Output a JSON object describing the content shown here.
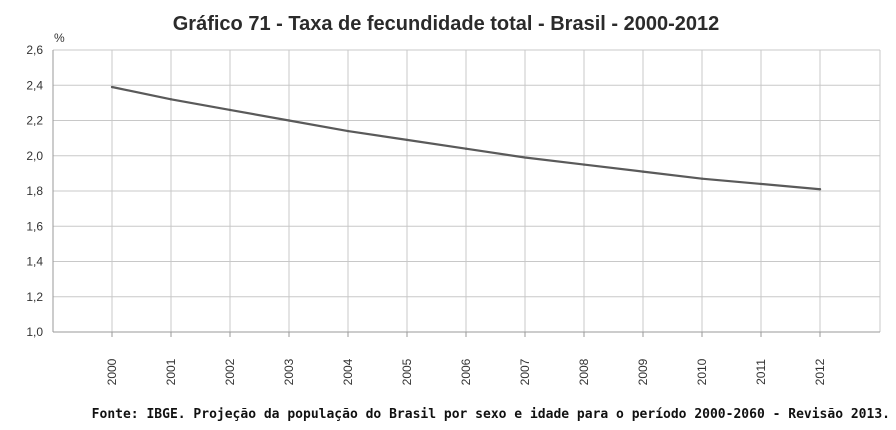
{
  "chart_data": {
    "type": "line",
    "title": "Gráfico 71 - Taxa de fecundidade total - Brasil - 2000-2012",
    "ylabel": "%",
    "xlabel": "",
    "categories": [
      "2000",
      "2001",
      "2002",
      "2003",
      "2004",
      "2005",
      "2006",
      "2007",
      "2008",
      "2009",
      "2010",
      "2011",
      "2012"
    ],
    "yticks": [
      "1,0",
      "1,2",
      "1,4",
      "1,6",
      "1,8",
      "2,0",
      "2,2",
      "2,4",
      "2,6"
    ],
    "ylim": [
      1.0,
      2.6
    ],
    "series": [
      {
        "values": [
          2.39,
          2.32,
          2.26,
          2.2,
          2.14,
          2.09,
          2.04,
          1.99,
          1.95,
          1.91,
          1.87,
          1.84,
          1.81
        ]
      }
    ],
    "grid": true,
    "legend": "none",
    "line_color": "#5a5a5a"
  },
  "source": "Fonte: IBGE. Projeção da população do Brasil por sexo e idade para o período 2000-2060 - Revisão 2013."
}
